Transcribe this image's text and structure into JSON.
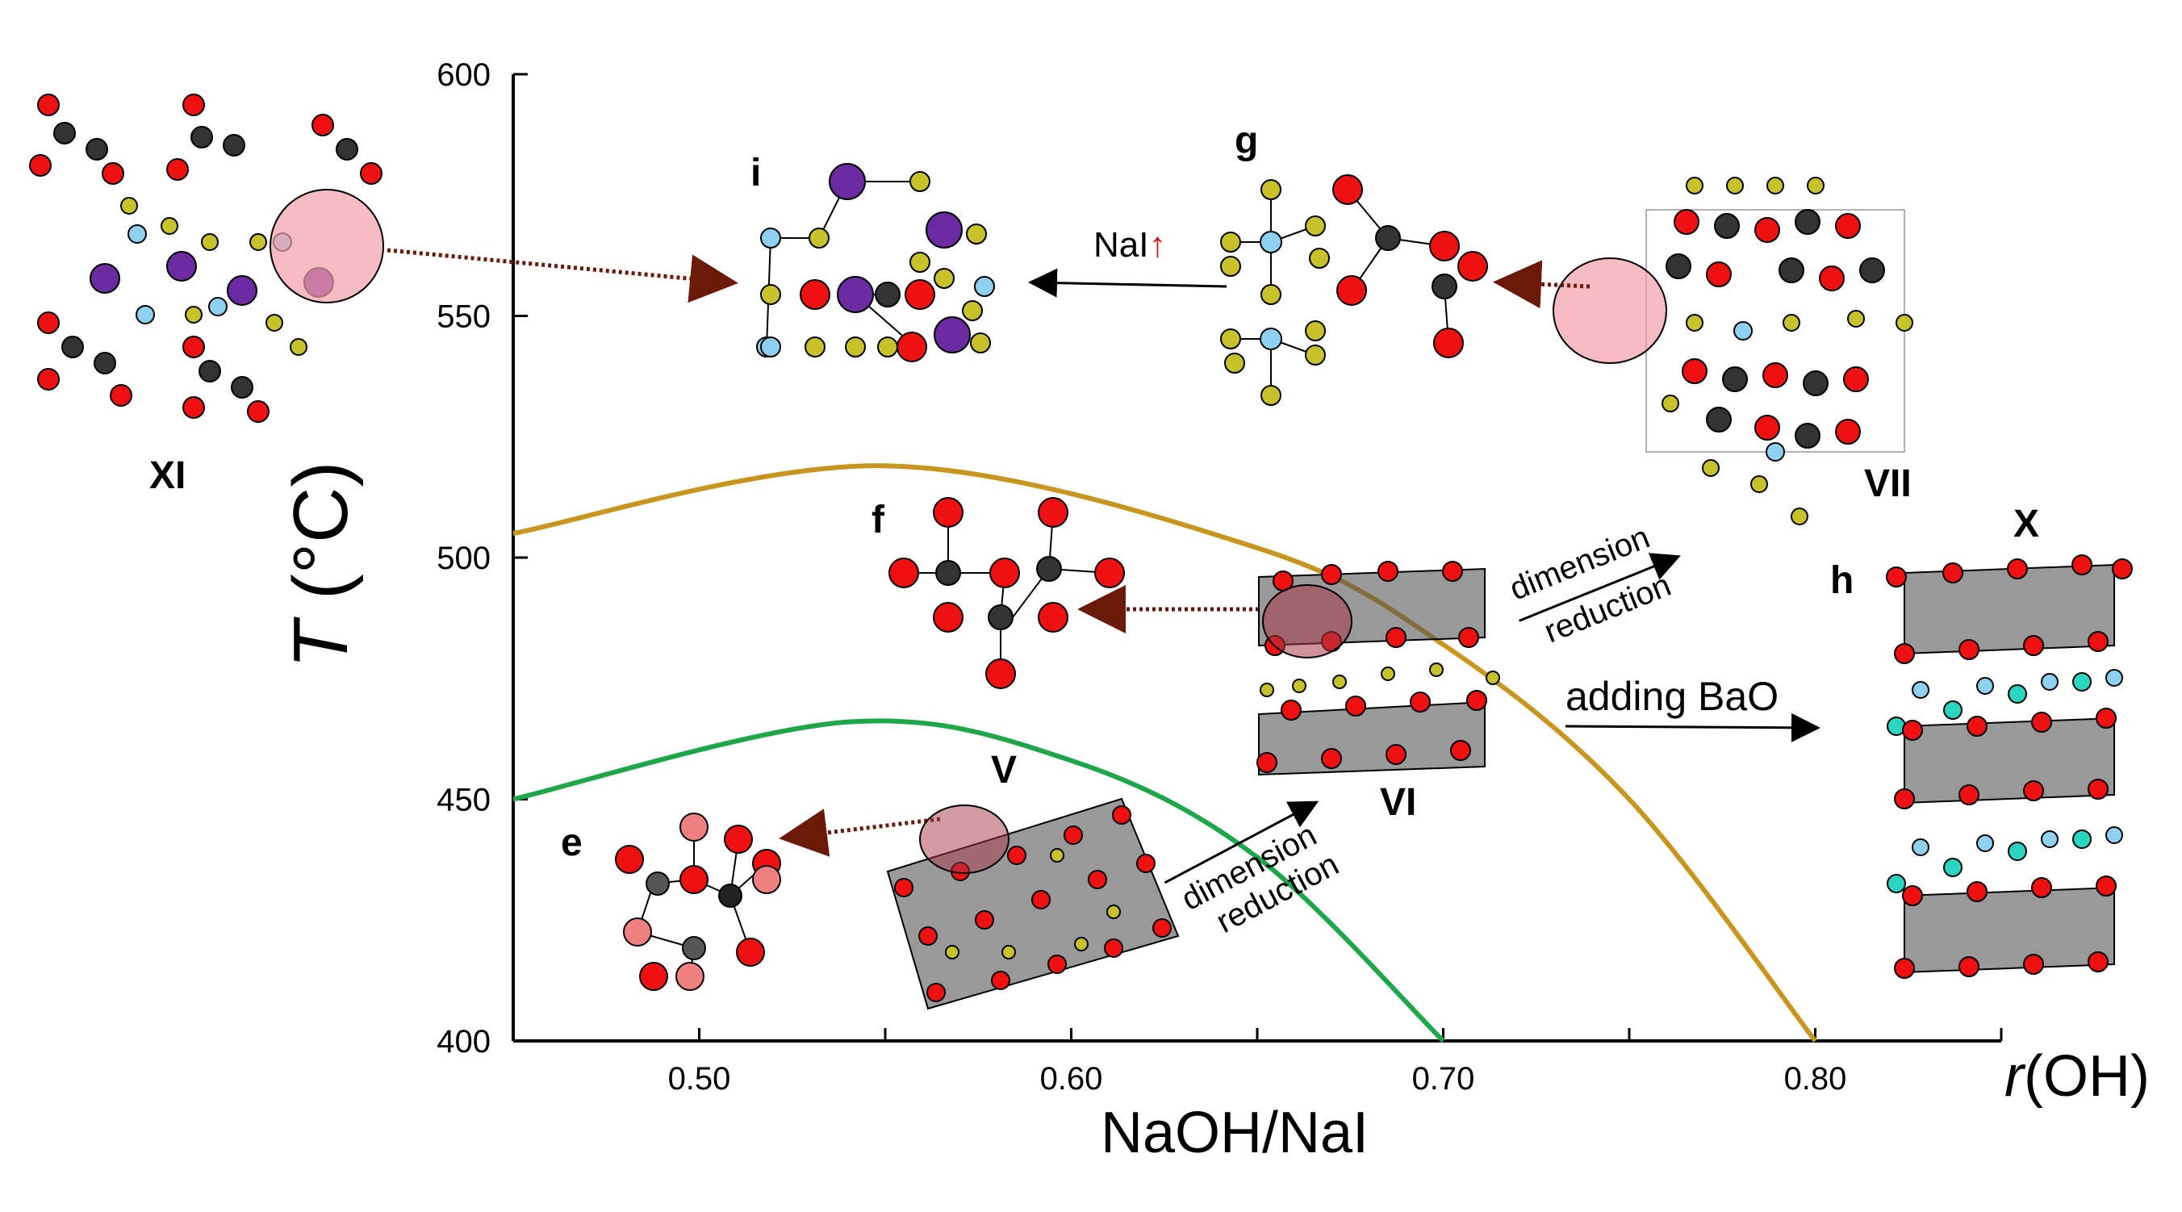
{
  "axes": {
    "y_label_italic": "T",
    "y_label_rest": " (°C)",
    "x_label": "NaOH/NaI",
    "x_label_right_italic": "r",
    "x_label_right_rest": "(OH)",
    "y_ticks": [
      "600",
      "550",
      "500",
      "450",
      "400"
    ],
    "x_ticks": [
      "0.50",
      "0.60",
      "0.70",
      "0.80"
    ],
    "xlim": [
      0.45,
      0.85
    ],
    "ylim": [
      400,
      600
    ]
  },
  "curves": [
    {
      "color": "#c8951e",
      "x": [
        0.45,
        0.55,
        0.65,
        0.7,
        0.75,
        0.8
      ],
      "y": [
        505,
        519,
        502,
        482,
        450,
        400
      ]
    },
    {
      "color": "#1fa64b",
      "x": [
        0.45,
        0.54,
        0.6,
        0.65,
        0.7
      ],
      "y": [
        450,
        466,
        458,
        438,
        400
      ]
    }
  ],
  "labels": {
    "XI": "XI",
    "i": "i",
    "g": "g",
    "VII": "VII",
    "f": "f",
    "X": "X",
    "h": "h",
    "VI": "VI",
    "V": "V",
    "e": "e"
  },
  "annotations": {
    "nai": "NaI",
    "nai_arrow": "↑",
    "dim1_a": "dimension",
    "dim1_b": "reduction",
    "dim2_a": "dimension",
    "dim2_b": "reduction",
    "bao": "adding BaO"
  },
  "colors": {
    "oxygen": "#ee1111",
    "carbon": "#333333",
    "sodium": "#c8c22a",
    "iodine": "#6a2aa0",
    "barium": "#2ad4c0",
    "hydroxyl": "#8fd0f0",
    "highlight": "#f4a0a6"
  }
}
